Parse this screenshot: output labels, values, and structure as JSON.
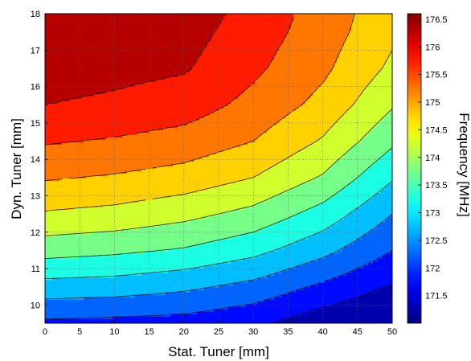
{
  "chart_data": {
    "type": "heatmap",
    "subtype": "filled-contour",
    "xlabel": "Stat. Tuner [mm]",
    "ylabel": "Dyn. Tuner [mm]",
    "colorbar_label": "Frequency [MHz]",
    "xlim": [
      0,
      50
    ],
    "ylim": [
      9.5,
      18
    ],
    "x_ticks": [
      "0",
      "5",
      "10",
      "15",
      "20",
      "25",
      "30",
      "35",
      "40",
      "45",
      "50"
    ],
    "y_ticks": [
      "10",
      "11",
      "12",
      "13",
      "14",
      "15",
      "16",
      "17",
      "18"
    ],
    "colorbar_range": [
      171.0,
      176.6
    ],
    "colorbar_ticks": [
      "171.5",
      "172",
      "172.5",
      "173",
      "173.5",
      "174",
      "174.5",
      "175",
      "175.5",
      "176",
      "176.5"
    ],
    "grid": true,
    "colormap": "jet",
    "contour_levels": [
      171.5,
      172,
      172.5,
      173,
      173.5,
      174,
      174.5,
      175,
      175.5,
      176
    ],
    "x": [
      0,
      10,
      20,
      30,
      40,
      50
    ],
    "y": [
      9.5,
      10.5,
      11.5,
      12.5,
      13.5,
      14.5,
      15.5,
      16.5,
      17.5,
      18
    ],
    "z": [
      [
        171.9,
        171.85,
        171.8,
        171.6,
        171.2,
        170.9
      ],
      [
        172.8,
        172.75,
        172.6,
        172.35,
        171.9,
        171.45
      ],
      [
        173.7,
        173.6,
        173.45,
        173.15,
        172.65,
        172.0
      ],
      [
        174.45,
        174.35,
        174.15,
        173.85,
        173.3,
        172.5
      ],
      [
        175.05,
        174.95,
        174.8,
        174.5,
        173.95,
        173.05
      ],
      [
        175.55,
        175.45,
        175.3,
        175.0,
        174.45,
        173.6
      ],
      [
        176.0,
        175.9,
        175.75,
        175.35,
        174.85,
        174.05
      ],
      [
        176.25,
        176.15,
        176.05,
        175.6,
        175.1,
        174.4
      ],
      [
        176.45,
        176.35,
        176.2,
        175.75,
        175.25,
        174.6
      ],
      [
        176.6,
        176.45,
        176.3,
        175.8,
        175.3,
        174.65
      ]
    ]
  }
}
